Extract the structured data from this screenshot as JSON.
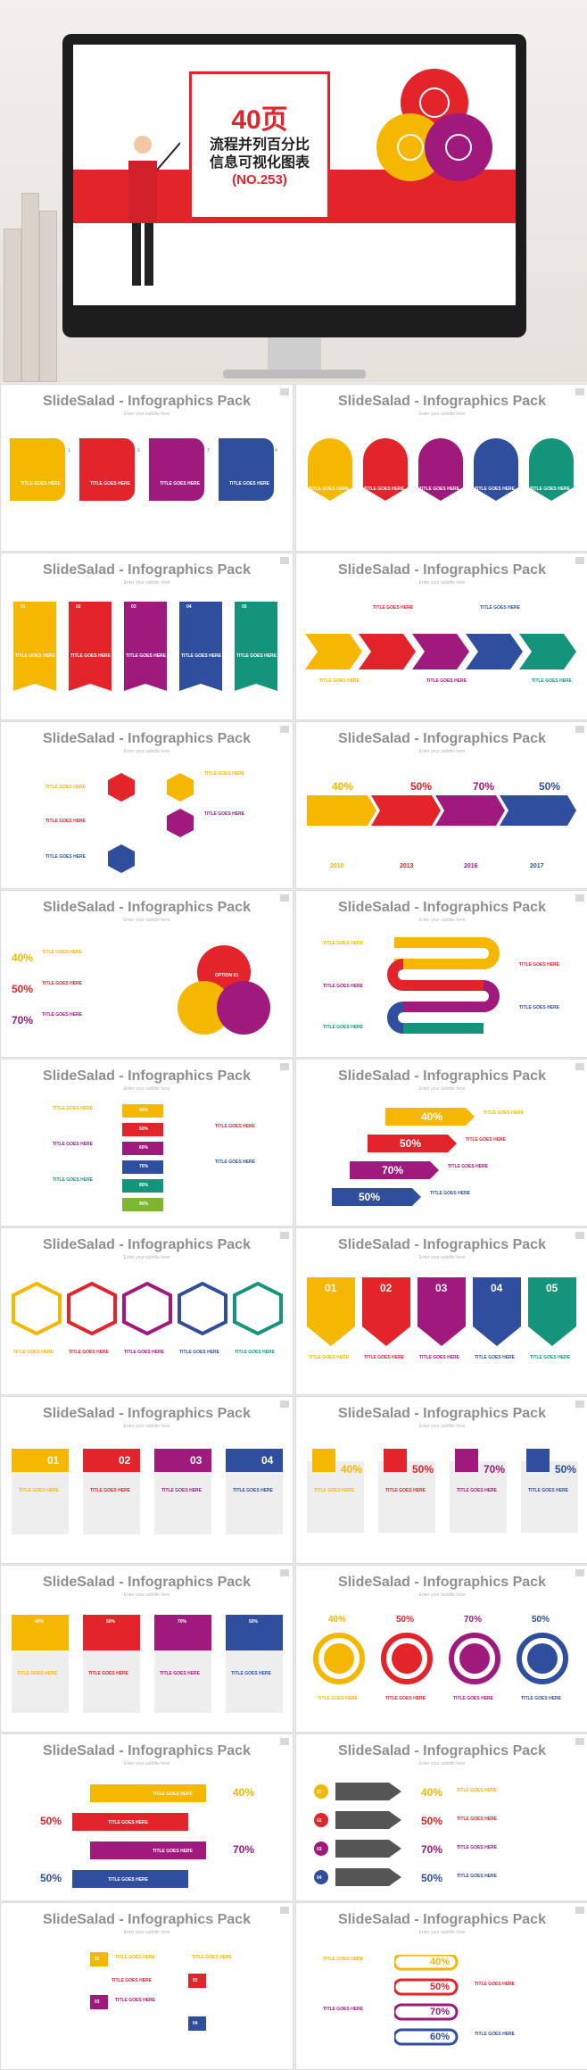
{
  "hero": {
    "title_big": "40页",
    "title_line1": "流程并列百分比",
    "title_line2": "信息可视化图表",
    "code": "(NO.253)"
  },
  "slide_title": "SlideSalad - Infographics Pack",
  "slide_subtitle": "Enter your subtitle here",
  "labels": {
    "title_goes_here": "TITLE GOES HERE",
    "option": "OPTION 01"
  },
  "numbers": {
    "n1": "01",
    "n2": "02",
    "n3": "03",
    "n4": "04",
    "n5": "05",
    "s1": "1",
    "s2": "2",
    "s3": "3",
    "s4": "4"
  },
  "percents": [
    "40%",
    "50%",
    "60%",
    "70%",
    "80%",
    "90%"
  ],
  "years": [
    "2010",
    "2013",
    "2016",
    "2017"
  ],
  "colors": {
    "yellow": "#f5b700",
    "red": "#e3242b",
    "purple": "#a0197d",
    "blue": "#2f4e9e",
    "teal": "#14957b",
    "grey": "#8f8f8f"
  }
}
